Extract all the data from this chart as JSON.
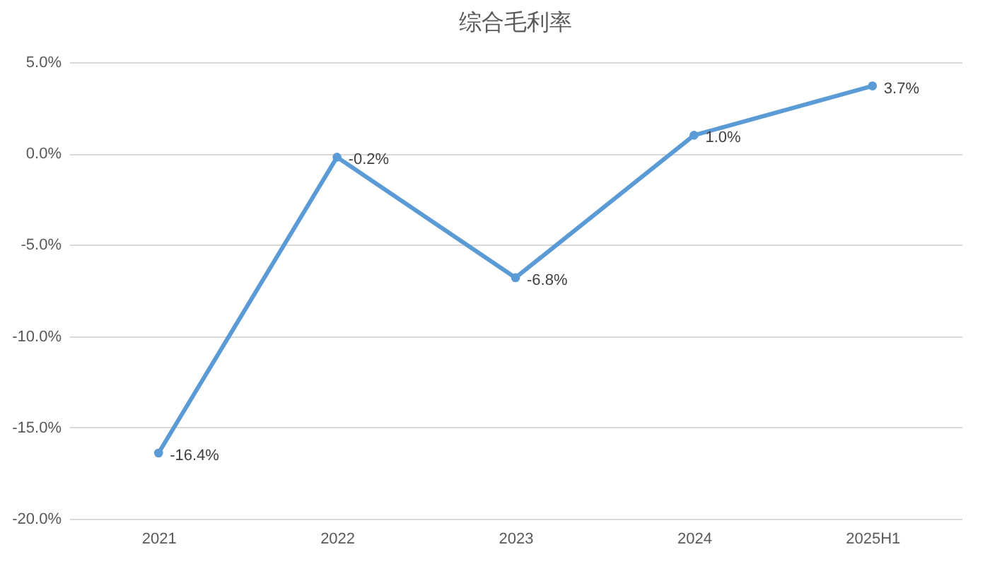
{
  "chart_data": {
    "type": "line",
    "title": "综合毛利率",
    "categories": [
      "2021",
      "2022",
      "2023",
      "2024",
      "2025H1"
    ],
    "series": [
      {
        "color": "#5b9bd5",
        "values": [
          -16.4,
          -0.2,
          -6.8,
          1.0,
          3.7
        ],
        "value_labels": [
          "-16.4%",
          "-0.2%",
          "-6.8%",
          "1.0%",
          "3.7%"
        ]
      }
    ],
    "ylim": [
      -20,
      5
    ],
    "yticks": [
      {
        "value": -20,
        "label": "-20.0%"
      },
      {
        "value": -15,
        "label": "-15.0%"
      },
      {
        "value": -10,
        "label": "-10.0%"
      },
      {
        "value": -5,
        "label": "-5.0%"
      },
      {
        "value": 0,
        "label": "0.0%"
      },
      {
        "value": 5,
        "label": "5.0%"
      }
    ],
    "grid": "y",
    "marker": "circle",
    "line_style": "solid",
    "legend": false
  }
}
